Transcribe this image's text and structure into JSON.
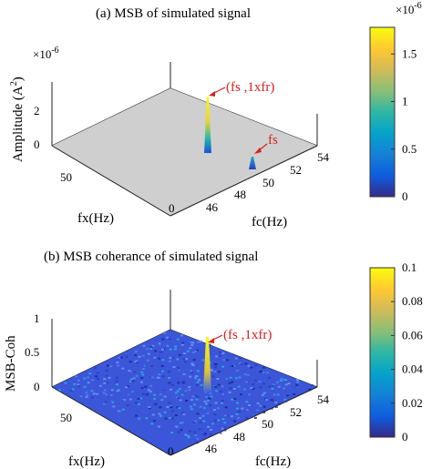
{
  "chart_data": [
    {
      "type": "surface3d",
      "panel": "(a)",
      "title": "(a)  MSB of simulated signal",
      "xlabel": "fc(Hz)",
      "ylabel": "fx(Hz)",
      "zlabel_base": "Amplitude (A",
      "zlabel_sup": "2",
      "zlabel_end": ")",
      "z_exponent": "×10",
      "z_exponent_sup": "-6",
      "xticks": [
        "46",
        "48",
        "50",
        "52",
        "54"
      ],
      "yticks": [
        "0",
        "50"
      ],
      "zticks": [
        "0",
        "2"
      ],
      "zlim": [
        0,
        2.6
      ],
      "surface": "flat gray plane with two isolated peaks",
      "peaks": [
        {
          "label": "(fs ,1xfr)",
          "fc": 49.9,
          "fx": 26,
          "z": 1.8
        },
        {
          "label": "fs",
          "fc": 50,
          "fx": 0,
          "z": 0.55
        }
      ],
      "colorbar": {
        "exponent": "×10",
        "exponent_sup": "-6",
        "ticks": [
          "0",
          "0.5",
          "1",
          "1.5"
        ],
        "tick_values": [
          0,
          0.5,
          1,
          1.5
        ],
        "range": [
          0,
          1.78
        ],
        "colormap": "parula"
      }
    },
    {
      "type": "surface3d",
      "panel": "(b)",
      "title": "(b)  MSB coherance of simulated signal",
      "xlabel": "fc(Hz)",
      "ylabel": "fx(Hz)",
      "zlabel": "MSB-Coh",
      "xticks": [
        "46",
        "48",
        "50",
        "52",
        "54"
      ],
      "yticks": [
        "0",
        "50"
      ],
      "zticks": [
        "0",
        "0.5",
        "1"
      ],
      "zlim": [
        0,
        1
      ],
      "surface": "noisy blue background around 0.01 with one peak",
      "peaks": [
        {
          "label": "(fs ,1xfr)",
          "fc": 49.9,
          "fx": 26,
          "z": 0.72
        }
      ],
      "colorbar": {
        "ticks": [
          "0",
          "0.02",
          "0.04",
          "0.06",
          "0.08",
          "0.1"
        ],
        "tick_values": [
          0,
          0.02,
          0.04,
          0.06,
          0.08,
          0.1
        ],
        "range": [
          0,
          0.1
        ],
        "colormap": "parula"
      }
    }
  ],
  "colors": {
    "annotation": "#d61f1f",
    "plane": "#cfcfcf",
    "axis": "#222222"
  }
}
